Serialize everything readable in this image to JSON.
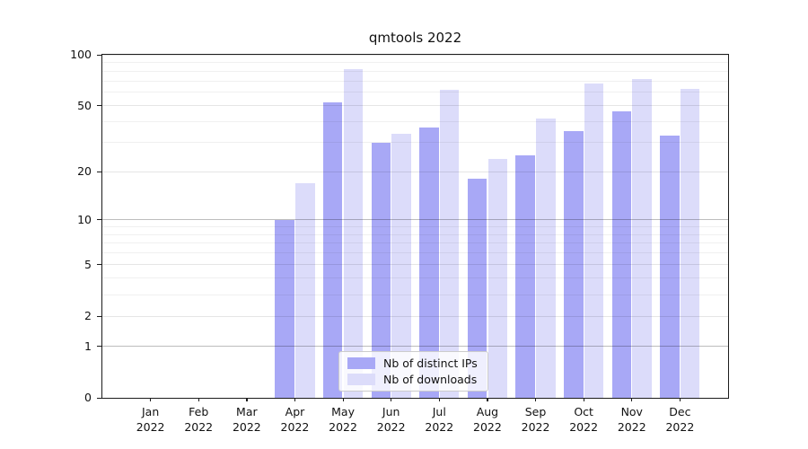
{
  "title": "qmtools 2022",
  "chart_data": {
    "type": "bar",
    "title": "qmtools 2022",
    "categories": [
      {
        "month": "Jan",
        "year": "2022"
      },
      {
        "month": "Feb",
        "year": "2022"
      },
      {
        "month": "Mar",
        "year": "2022"
      },
      {
        "month": "Apr",
        "year": "2022"
      },
      {
        "month": "May",
        "year": "2022"
      },
      {
        "month": "Jun",
        "year": "2022"
      },
      {
        "month": "Jul",
        "year": "2022"
      },
      {
        "month": "Aug",
        "year": "2022"
      },
      {
        "month": "Sep",
        "year": "2022"
      },
      {
        "month": "Oct",
        "year": "2022"
      },
      {
        "month": "Nov",
        "year": "2022"
      },
      {
        "month": "Dec",
        "year": "2022"
      }
    ],
    "series": [
      {
        "name": "Nb of distinct IPs",
        "color": "#a8a8f6",
        "values": [
          0,
          0,
          0,
          10,
          52,
          30,
          37,
          18,
          25,
          35,
          46,
          33
        ]
      },
      {
        "name": "Nb of downloads",
        "color": "#dcdcfa",
        "values": [
          0,
          0,
          0,
          17,
          82,
          34,
          62,
          24,
          42,
          68,
          72,
          63
        ]
      }
    ],
    "xlabel": "",
    "ylabel": "",
    "ylim": [
      0,
      100
    ],
    "yscale": "symlog-log1p",
    "yticks": [
      {
        "value": 100,
        "label": "100"
      },
      {
        "value": 50,
        "label": "50"
      },
      {
        "value": 20,
        "label": "20"
      },
      {
        "value": 10,
        "label": "10"
      },
      {
        "value": 5,
        "label": "5"
      },
      {
        "value": 2,
        "label": "2"
      },
      {
        "value": 1,
        "label": "1"
      },
      {
        "value": 0,
        "label": "0"
      }
    ],
    "minor_yticks": [
      3,
      4,
      6,
      7,
      8,
      9,
      30,
      40,
      60,
      70,
      80,
      90
    ],
    "strong_gridlines": [
      1,
      10
    ],
    "grid": true,
    "legend_position": "lower-center"
  }
}
